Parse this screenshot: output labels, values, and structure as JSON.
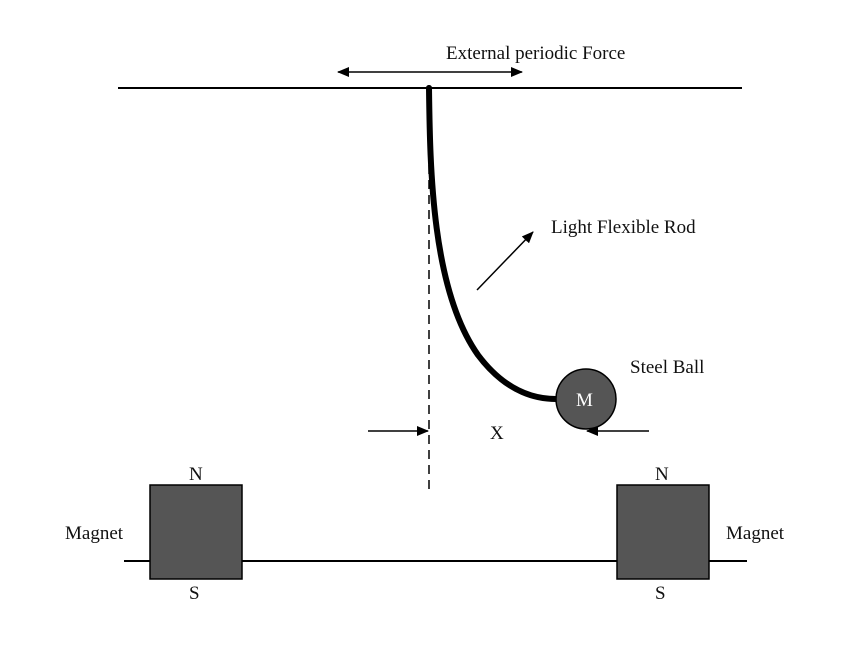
{
  "labels": {
    "external_force": "External periodic Force",
    "rod": "Light Flexible Rod",
    "ball": "Steel Ball",
    "mass": "M",
    "displacement": "X",
    "magnet_left": "Magnet",
    "magnet_right": "Magnet",
    "left_north": "N",
    "left_south": "S",
    "right_north": "N",
    "right_south": "S"
  },
  "colors": {
    "line": "#000000",
    "magnet_fill": "#555555",
    "ball_fill": "#555555",
    "ball_text": "#ffffff",
    "text": "#111111"
  }
}
